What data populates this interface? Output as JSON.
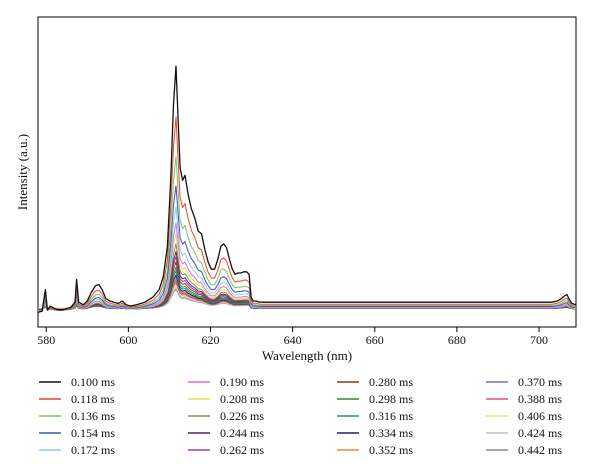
{
  "chart_data": {
    "type": "line",
    "title": "",
    "xlabel": "Wavelength (nm)",
    "ylabel": "Intensity (a.u.)",
    "xlim": [
      578,
      709
    ],
    "ylim": [
      0,
      1
    ],
    "xticks": [
      580,
      600,
      620,
      640,
      660,
      680,
      700
    ],
    "x_tick_labels": [
      "580",
      "600",
      "620",
      "640",
      "660",
      "680",
      "700"
    ],
    "y_ticks_shown": false,
    "grid": false,
    "legend_placement": "bottom, 4 columns",
    "legend_columns": 4,
    "x": [
      578,
      579,
      579.8,
      580.3,
      581,
      582,
      583,
      584,
      585,
      586,
      587,
      587.4,
      587.9,
      589,
      590,
      591,
      592,
      592.8,
      593.6,
      594.5,
      595.5,
      596.5,
      597.5,
      598.5,
      599.5,
      600.5,
      602,
      604,
      606,
      607.5,
      608.5,
      609.5,
      610.3,
      611,
      611.6,
      612.1,
      612.6,
      613.2,
      613.8,
      614.5,
      615.3,
      616.2,
      617,
      617.8,
      618.6,
      619.4,
      620.2,
      621,
      621.8,
      622.5,
      623.2,
      623.9,
      624.6,
      625.3,
      626,
      626.7,
      627.4,
      628.1,
      628.8,
      629.4,
      629.9,
      630.4,
      631,
      632,
      640,
      660,
      680,
      690,
      700,
      703,
      704.5,
      705.5,
      706.2,
      706.8,
      707.4,
      708,
      709
    ],
    "base_profile": [
      0.03,
      0.035,
      0.12,
      0.04,
      0.055,
      0.045,
      0.04,
      0.04,
      0.045,
      0.05,
      0.07,
      0.16,
      0.07,
      0.06,
      0.075,
      0.11,
      0.135,
      0.14,
      0.12,
      0.085,
      0.075,
      0.07,
      0.065,
      0.075,
      0.06,
      0.055,
      0.06,
      0.07,
      0.09,
      0.12,
      0.17,
      0.29,
      0.55,
      0.85,
      1.0,
      0.8,
      0.6,
      0.55,
      0.57,
      0.5,
      0.44,
      0.4,
      0.35,
      0.34,
      0.28,
      0.23,
      0.2,
      0.2,
      0.24,
      0.29,
      0.3,
      0.285,
      0.24,
      0.2,
      0.18,
      0.185,
      0.185,
      0.19,
      0.19,
      0.18,
      0.09,
      0.075,
      0.075,
      0.07,
      0.07,
      0.07,
      0.07,
      0.07,
      0.07,
      0.07,
      0.075,
      0.085,
      0.095,
      0.1,
      0.08,
      0.065,
      0.06
    ],
    "series": [
      {
        "name": "0.100 ms",
        "color": "#111111",
        "peak_intensity": 0.92,
        "baseline": 0.0
      },
      {
        "name": "0.118 ms",
        "color": "#e8442b",
        "peak_intensity": 0.73,
        "baseline": 0.006
      },
      {
        "name": "0.136 ms",
        "color": "#79c267",
        "peak_intensity": 0.58,
        "baseline": 0.012
      },
      {
        "name": "0.154 ms",
        "color": "#3a55b4",
        "peak_intensity": 0.47,
        "baseline": 0.016
      },
      {
        "name": "0.172 ms",
        "color": "#8ecae6",
        "peak_intensity": 0.39,
        "baseline": 0.02
      },
      {
        "name": "0.190 ms",
        "color": "#d46ee0",
        "peak_intensity": 0.33,
        "baseline": 0.022
      },
      {
        "name": "0.208 ms",
        "color": "#e8e04a",
        "peak_intensity": 0.29,
        "baseline": 0.024
      },
      {
        "name": "0.226 ms",
        "color": "#8a8a5a",
        "peak_intensity": 0.25,
        "baseline": 0.026
      },
      {
        "name": "0.244 ms",
        "color": "#4a2a6a",
        "peak_intensity": 0.22,
        "baseline": 0.028
      },
      {
        "name": "0.262 ms",
        "color": "#9b3fb5",
        "peak_intensity": 0.2,
        "baseline": 0.029
      },
      {
        "name": "0.280 ms",
        "color": "#8b3a1a",
        "peak_intensity": 0.18,
        "baseline": 0.03
      },
      {
        "name": "0.298 ms",
        "color": "#2e8b3a",
        "peak_intensity": 0.16,
        "baseline": 0.031
      },
      {
        "name": "0.316 ms",
        "color": "#2a8a8a",
        "peak_intensity": 0.145,
        "baseline": 0.032
      },
      {
        "name": "0.334 ms",
        "color": "#1f1f6b",
        "peak_intensity": 0.13,
        "baseline": 0.033
      },
      {
        "name": "0.352 ms",
        "color": "#f08a30",
        "peak_intensity": 0.12,
        "baseline": 0.034
      },
      {
        "name": "0.370 ms",
        "color": "#7a6ab0",
        "peak_intensity": 0.11,
        "baseline": 0.035
      },
      {
        "name": "0.388 ms",
        "color": "#e84a8a",
        "peak_intensity": 0.1,
        "baseline": 0.036
      },
      {
        "name": "0.406 ms",
        "color": "#f2e27a",
        "peak_intensity": 0.09,
        "baseline": 0.037
      },
      {
        "name": "0.424 ms",
        "color": "#b8c2c8",
        "peak_intensity": 0.08,
        "baseline": 0.038
      },
      {
        "name": "0.442 ms",
        "color": "#8a8a8a",
        "peak_intensity": 0.072,
        "baseline": 0.039
      }
    ]
  }
}
